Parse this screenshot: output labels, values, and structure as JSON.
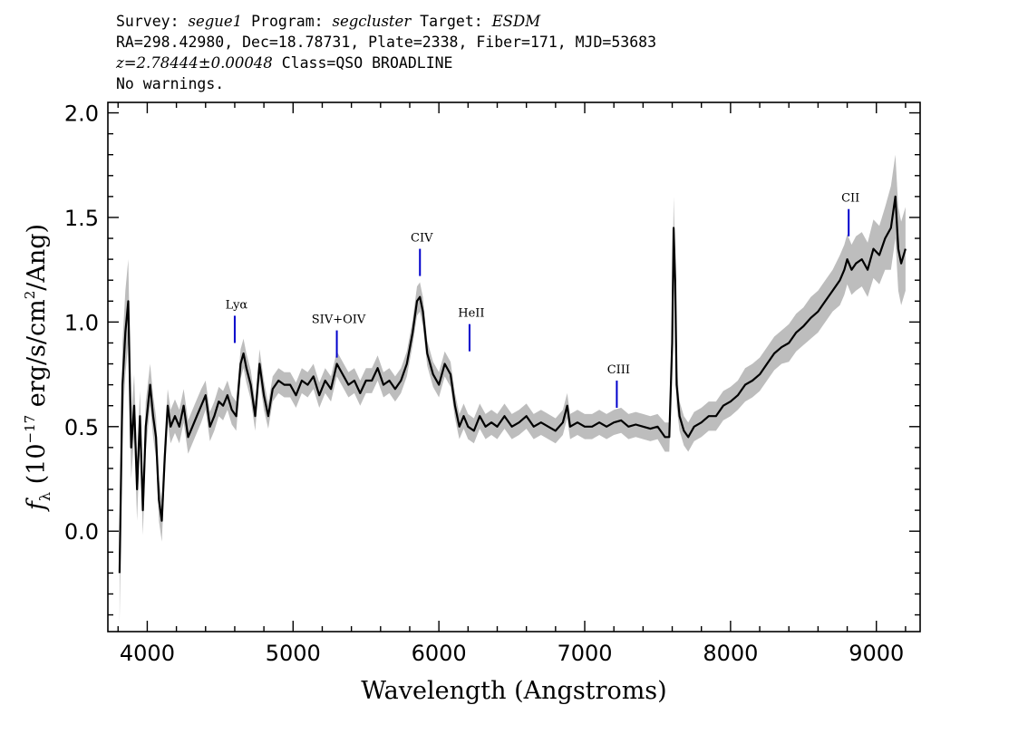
{
  "header": {
    "survey_label": "Survey: ",
    "survey": "segue1",
    "program_label": " Program: ",
    "program": "segcluster",
    "target_label": " Target: ",
    "target": "ESDM",
    "line2": "RA=298.42980, Dec=18.78731, Plate=2338, Fiber=171, MJD=53683",
    "z": "z=2.78444±0.00048",
    "class_text": " Class=QSO BROADLINE",
    "line4": "No warnings."
  },
  "chart_data": {
    "type": "line",
    "xlabel": "Wavelength (Angstroms)",
    "ylabel": "f_λ (10^-17 erg/s/cm^2/Ang)",
    "ylabel_parts": {
      "symbol": "f",
      "subscript": "λ",
      "pre": " (10",
      "exp1": "−17",
      "mid": " erg/s/cm",
      "exp2": "2",
      "post": "/Ang)"
    },
    "xlim": [
      3730,
      9300
    ],
    "ylim": [
      -0.48,
      2.05
    ],
    "xticks": [
      4000,
      5000,
      6000,
      7000,
      8000,
      9000
    ],
    "xtick_labels": [
      "4000",
      "5000",
      "6000",
      "7000",
      "8000",
      "9000"
    ],
    "yticks": [
      0.0,
      0.5,
      1.0,
      1.5,
      2.0
    ],
    "ytick_labels": [
      "0.0",
      "0.5",
      "1.0",
      "1.5",
      "2.0"
    ],
    "series": [
      {
        "color": "#000000",
        "error_color": "#bdbdbd",
        "x": [
          3810,
          3830,
          3850,
          3870,
          3890,
          3910,
          3930,
          3950,
          3970,
          3990,
          4020,
          4040,
          4060,
          4080,
          4100,
          4120,
          4140,
          4160,
          4190,
          4220,
          4250,
          4280,
          4310,
          4340,
          4370,
          4400,
          4430,
          4460,
          4490,
          4520,
          4550,
          4580,
          4610,
          4640,
          4660,
          4680,
          4710,
          4740,
          4770,
          4800,
          4830,
          4860,
          4900,
          4940,
          4980,
          5020,
          5060,
          5100,
          5140,
          5180,
          5220,
          5260,
          5300,
          5340,
          5380,
          5420,
          5460,
          5500,
          5540,
          5580,
          5620,
          5660,
          5700,
          5740,
          5780,
          5820,
          5850,
          5870,
          5890,
          5920,
          5960,
          6000,
          6040,
          6080,
          6110,
          6140,
          6170,
          6200,
          6240,
          6280,
          6320,
          6360,
          6400,
          6450,
          6500,
          6550,
          6600,
          6650,
          6700,
          6750,
          6800,
          6850,
          6880,
          6900,
          6950,
          7000,
          7050,
          7100,
          7150,
          7200,
          7250,
          7300,
          7350,
          7400,
          7450,
          7500,
          7550,
          7580,
          7600,
          7610,
          7620,
          7630,
          7650,
          7680,
          7710,
          7750,
          7800,
          7850,
          7900,
          7950,
          8000,
          8050,
          8100,
          8150,
          8200,
          8250,
          8300,
          8350,
          8400,
          8450,
          8500,
          8550,
          8600,
          8650,
          8700,
          8750,
          8780,
          8800,
          8830,
          8860,
          8900,
          8940,
          8980,
          9020,
          9060,
          9100,
          9130,
          9150,
          9170,
          9200
        ],
        "y": [
          -0.2,
          0.7,
          0.95,
          1.1,
          0.4,
          0.6,
          0.2,
          0.55,
          0.1,
          0.5,
          0.7,
          0.55,
          0.45,
          0.15,
          0.05,
          0.35,
          0.6,
          0.5,
          0.55,
          0.5,
          0.6,
          0.45,
          0.5,
          0.55,
          0.6,
          0.65,
          0.5,
          0.55,
          0.62,
          0.6,
          0.65,
          0.58,
          0.55,
          0.8,
          0.85,
          0.78,
          0.7,
          0.55,
          0.8,
          0.65,
          0.55,
          0.68,
          0.72,
          0.7,
          0.7,
          0.65,
          0.72,
          0.7,
          0.74,
          0.65,
          0.72,
          0.68,
          0.8,
          0.75,
          0.7,
          0.72,
          0.66,
          0.72,
          0.72,
          0.78,
          0.7,
          0.72,
          0.68,
          0.72,
          0.8,
          0.95,
          1.1,
          1.12,
          1.05,
          0.85,
          0.75,
          0.7,
          0.8,
          0.75,
          0.6,
          0.5,
          0.55,
          0.5,
          0.48,
          0.55,
          0.5,
          0.52,
          0.5,
          0.55,
          0.5,
          0.52,
          0.55,
          0.5,
          0.52,
          0.5,
          0.48,
          0.52,
          0.6,
          0.5,
          0.52,
          0.5,
          0.5,
          0.52,
          0.5,
          0.52,
          0.53,
          0.5,
          0.51,
          0.5,
          0.49,
          0.5,
          0.45,
          0.45,
          0.9,
          1.45,
          1.2,
          0.7,
          0.55,
          0.48,
          0.45,
          0.5,
          0.52,
          0.55,
          0.55,
          0.6,
          0.62,
          0.65,
          0.7,
          0.72,
          0.75,
          0.8,
          0.85,
          0.88,
          0.9,
          0.95,
          0.98,
          1.02,
          1.05,
          1.1,
          1.15,
          1.2,
          1.25,
          1.3,
          1.25,
          1.28,
          1.3,
          1.25,
          1.35,
          1.32,
          1.4,
          1.45,
          1.6,
          1.35,
          1.28,
          1.35
        ],
        "error": [
          0.25,
          0.2,
          0.2,
          0.2,
          0.15,
          0.15,
          0.15,
          0.12,
          0.12,
          0.12,
          0.1,
          0.1,
          0.1,
          0.1,
          0.1,
          0.1,
          0.08,
          0.08,
          0.08,
          0.08,
          0.08,
          0.08,
          0.08,
          0.08,
          0.08,
          0.07,
          0.07,
          0.07,
          0.07,
          0.07,
          0.07,
          0.07,
          0.07,
          0.07,
          0.07,
          0.07,
          0.07,
          0.07,
          0.07,
          0.07,
          0.06,
          0.06,
          0.06,
          0.06,
          0.06,
          0.06,
          0.06,
          0.06,
          0.06,
          0.06,
          0.06,
          0.06,
          0.06,
          0.06,
          0.06,
          0.06,
          0.06,
          0.06,
          0.06,
          0.06,
          0.06,
          0.06,
          0.06,
          0.06,
          0.06,
          0.06,
          0.07,
          0.07,
          0.07,
          0.06,
          0.06,
          0.06,
          0.06,
          0.06,
          0.06,
          0.06,
          0.06,
          0.06,
          0.06,
          0.06,
          0.06,
          0.06,
          0.06,
          0.06,
          0.06,
          0.06,
          0.06,
          0.06,
          0.06,
          0.06,
          0.06,
          0.06,
          0.06,
          0.06,
          0.06,
          0.06,
          0.06,
          0.06,
          0.06,
          0.06,
          0.06,
          0.06,
          0.06,
          0.06,
          0.06,
          0.06,
          0.07,
          0.07,
          0.1,
          0.15,
          0.12,
          0.1,
          0.07,
          0.07,
          0.07,
          0.07,
          0.07,
          0.07,
          0.07,
          0.07,
          0.07,
          0.07,
          0.08,
          0.08,
          0.08,
          0.08,
          0.08,
          0.08,
          0.09,
          0.09,
          0.09,
          0.1,
          0.1,
          0.1,
          0.1,
          0.12,
          0.12,
          0.12,
          0.12,
          0.13,
          0.13,
          0.13,
          0.14,
          0.14,
          0.15,
          0.2,
          0.2,
          0.2,
          0.2,
          0.2
        ]
      }
    ],
    "line_markers": [
      {
        "label": "Lyα",
        "x": 4600,
        "y_top": 1.03,
        "y_bottom": 0.9
      },
      {
        "label": "SIV+OIV",
        "x": 5300,
        "y_top": 0.96,
        "y_bottom": 0.83
      },
      {
        "label": "CIV",
        "x": 5870,
        "y_top": 1.35,
        "y_bottom": 1.22
      },
      {
        "label": "HeII",
        "x": 6210,
        "y_top": 0.99,
        "y_bottom": 0.86
      },
      {
        "label": "CIII",
        "x": 7220,
        "y_top": 0.72,
        "y_bottom": 0.59
      },
      {
        "label": "CII",
        "x": 8810,
        "y_top": 1.54,
        "y_bottom": 1.41
      }
    ],
    "marker_color": "#0000cc",
    "grid": false
  }
}
